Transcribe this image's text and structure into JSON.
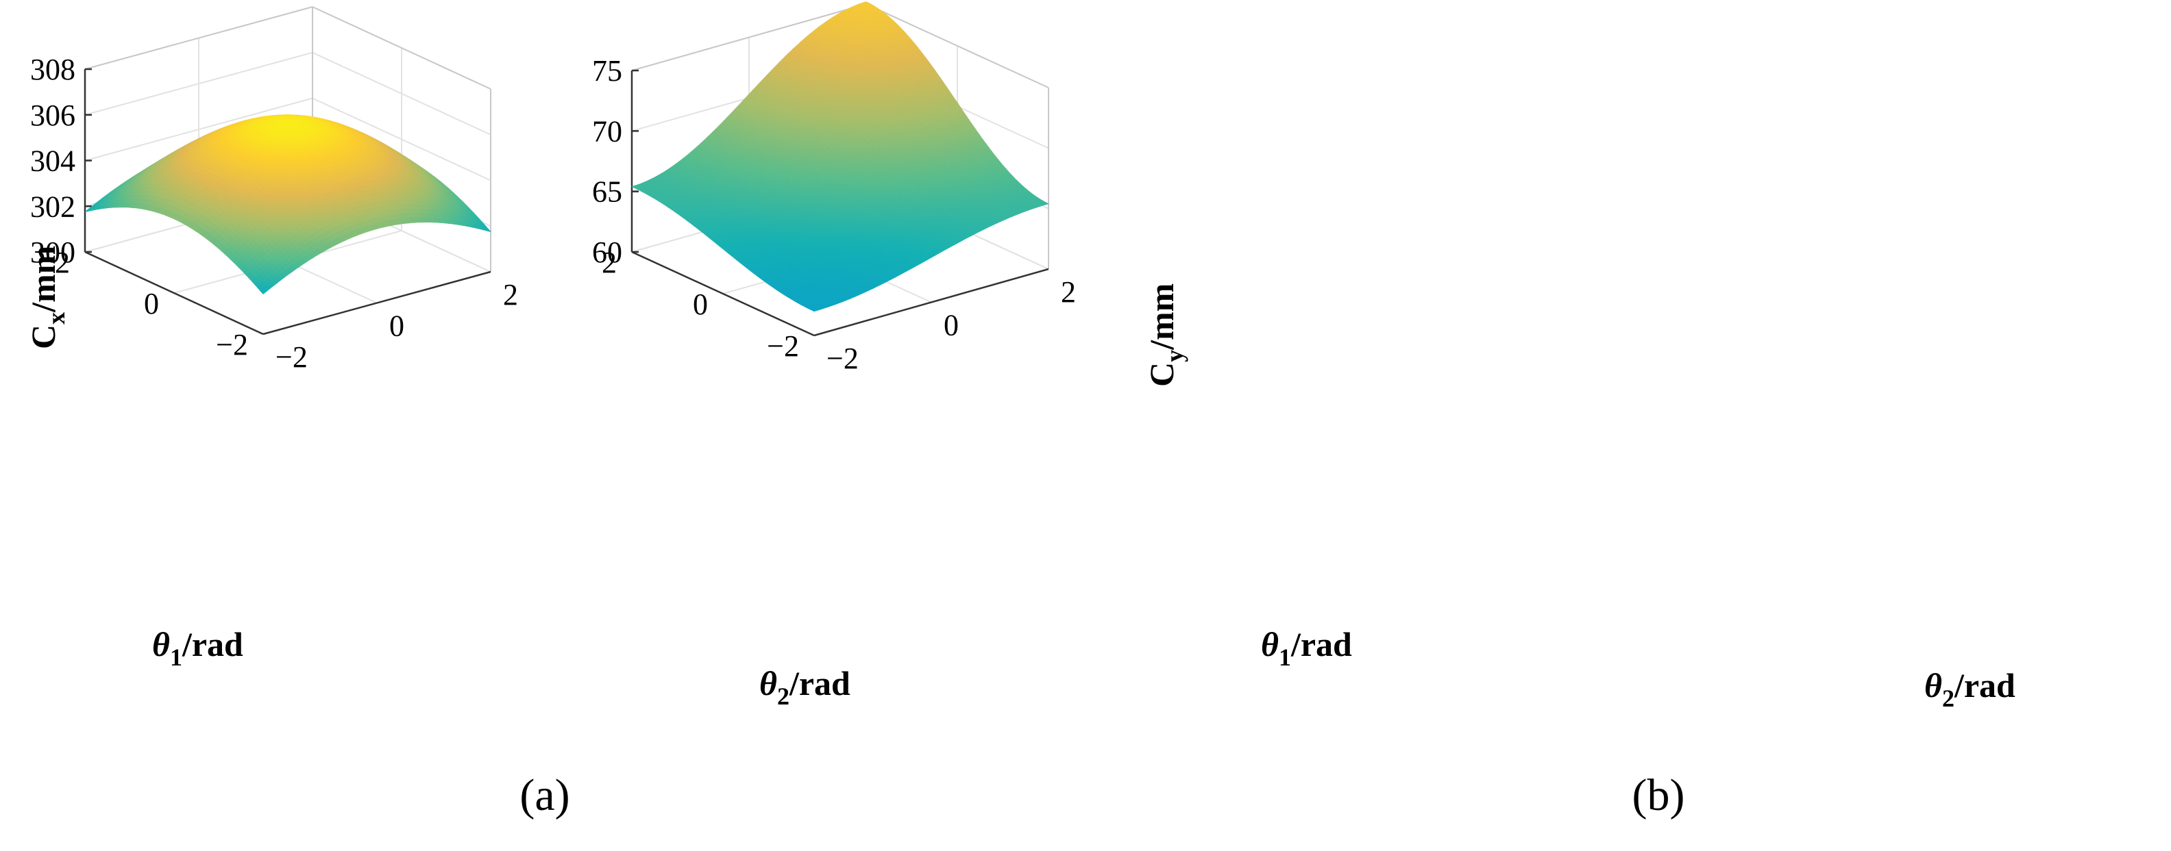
{
  "chart_data": [
    {
      "type": "surface",
      "panel_label": "(a)",
      "zlabel_main": "C",
      "zlabel_sub": "x",
      "zlabel_unit": "/mm",
      "xlabel_main": "θ",
      "xlabel_sub": "2",
      "xlabel_unit": "/rad",
      "ylabel_main": "θ",
      "ylabel_sub": "1",
      "ylabel_unit": "/rad",
      "xlim": [
        -2,
        2
      ],
      "ylim": [
        -2,
        2
      ],
      "zlim": [
        300,
        308
      ],
      "xticks": [
        "−2",
        "0",
        "2"
      ],
      "yticks": [
        "−2",
        "0",
        "2"
      ],
      "zticks": [
        "300",
        "302",
        "304",
        "306",
        "308"
      ],
      "colormap": "parula",
      "grid": true,
      "z_samples": {
        "theta1_grid": [
          -2,
          -1,
          0,
          1,
          2
        ],
        "theta2_grid": [
          -2,
          -1,
          0,
          1,
          2
        ],
        "z": [
          [
            297.0,
            300.4,
            301.5,
            300.4,
            297.0
          ],
          [
            300.4,
            303.8,
            304.9,
            303.8,
            300.4
          ],
          [
            301.5,
            304.9,
            306.0,
            304.9,
            301.5
          ],
          [
            300.4,
            303.8,
            304.9,
            303.8,
            300.4
          ],
          [
            297.0,
            300.4,
            301.5,
            300.4,
            297.0
          ]
        ]
      }
    },
    {
      "type": "surface",
      "panel_label": "(b)",
      "zlabel_main": "C",
      "zlabel_sub": "y",
      "zlabel_unit": "/mm",
      "xlabel_main": "θ",
      "xlabel_sub": "2",
      "xlabel_unit": "/rad",
      "ylabel_main": "θ",
      "ylabel_sub": "1",
      "ylabel_unit": "/rad",
      "xlim": [
        -2,
        2
      ],
      "ylim": [
        -2,
        2
      ],
      "zlim": [
        60,
        75
      ],
      "xticks": [
        "−2",
        "0",
        "2"
      ],
      "yticks": [
        "−2",
        "0",
        "2"
      ],
      "zticks": [
        "60",
        "65",
        "70",
        "75"
      ],
      "colormap": "parula",
      "grid": true,
      "z_samples": {
        "theta1_grid": [
          -2,
          -1,
          0,
          1,
          2
        ],
        "theta2_grid": [
          -2,
          -1,
          0,
          1,
          2
        ],
        "z": [
          [
            54.0,
            58.5,
            62.5,
            66.0,
            67.0
          ],
          [
            58.5,
            62.0,
            66.0,
            69.5,
            70.5
          ],
          [
            62.5,
            66.0,
            67.0,
            71.5,
            72.5
          ],
          [
            66.0,
            69.5,
            71.5,
            75.0,
            77.0
          ],
          [
            67.0,
            70.5,
            72.5,
            77.0,
            80.0
          ]
        ]
      }
    }
  ]
}
